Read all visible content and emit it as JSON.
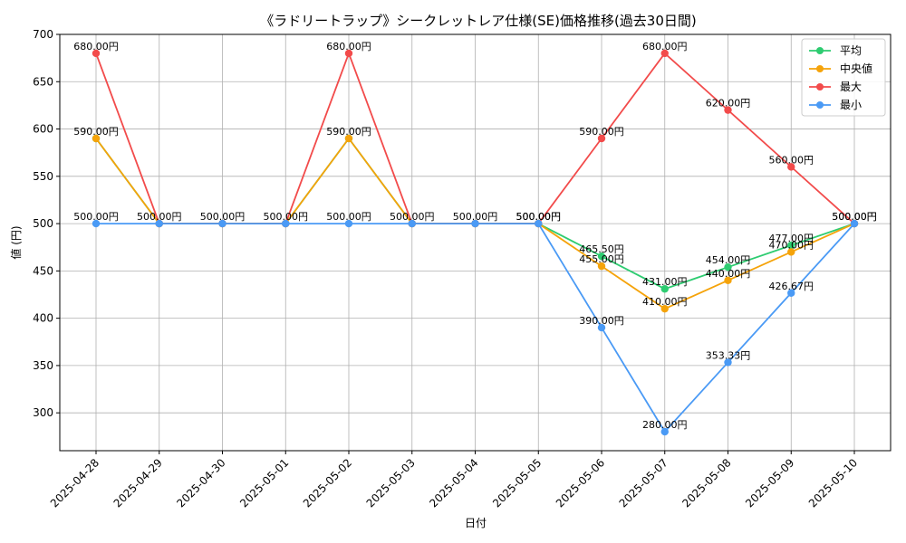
{
  "chart_data": {
    "type": "line",
    "title": "《ラドリートラップ》シークレットレア仕様(SE)価格推移(過去30日間)",
    "xlabel": "日付",
    "ylabel": "値 (円)",
    "categories": [
      "2025-04-28",
      "2025-04-29",
      "2025-04-30",
      "2025-05-01",
      "2025-05-02",
      "2025-05-03",
      "2025-05-04",
      "2025-05-05",
      "2025-05-06",
      "2025-05-07",
      "2025-05-08",
      "2025-05-09",
      "2025-05-10"
    ],
    "ylim": [
      260,
      700
    ],
    "yticks": [
      300,
      350,
      400,
      450,
      500,
      550,
      600,
      650,
      700
    ],
    "grid": true,
    "legend_position": "top-right",
    "value_suffix": "円",
    "series": [
      {
        "name": "平均",
        "color": "#2ecc71",
        "values": [
          590,
          500,
          500,
          500,
          590,
          500,
          500,
          500,
          465.5,
          431,
          454,
          477,
          500
        ],
        "labels": [
          null,
          null,
          null,
          null,
          null,
          null,
          null,
          null,
          "465.50円",
          "431.00円",
          "454.00円",
          "477.00円",
          null
        ]
      },
      {
        "name": "中央値",
        "color": "#f5a30a",
        "values": [
          590,
          500,
          500,
          500,
          590,
          500,
          500,
          500,
          455,
          410,
          440,
          470,
          500
        ],
        "labels": [
          "590.00円",
          null,
          null,
          null,
          "590.00円",
          null,
          null,
          null,
          "455.00円",
          "410.00円",
          "440.00円",
          "470.00円",
          null
        ]
      },
      {
        "name": "最大",
        "color": "#f24b4b",
        "values": [
          680,
          500,
          500,
          500,
          680,
          500,
          500,
          500,
          590,
          680,
          620,
          560,
          500
        ],
        "labels": [
          "680.00円",
          null,
          null,
          null,
          "680.00円",
          null,
          null,
          "500.00円",
          "590.00円",
          "680.00円",
          "620.00円",
          "560.00円",
          "500.00円"
        ]
      },
      {
        "name": "最小",
        "color": "#4a9af5",
        "values": [
          500,
          500,
          500,
          500,
          500,
          500,
          500,
          500,
          390,
          280,
          353.33,
          426.67,
          500
        ],
        "labels": [
          "500.00円",
          "500.00円",
          "500.00円",
          "500.00円",
          "500.00円",
          "500.00円",
          "500.00円",
          "500.00円",
          "390.00円",
          "280.00円",
          "353.33円",
          "426.67円",
          "500.00円"
        ]
      }
    ]
  }
}
